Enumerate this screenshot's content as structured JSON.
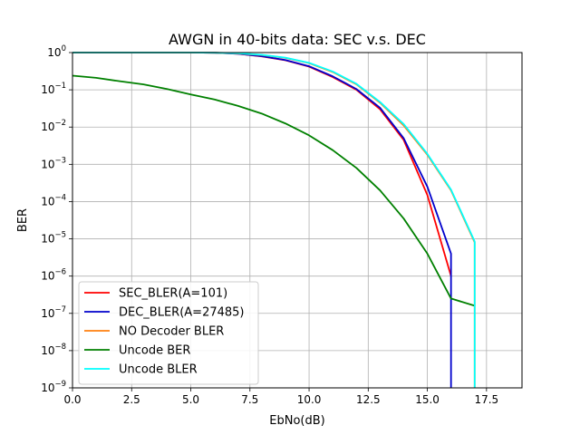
{
  "chart_data": {
    "type": "line",
    "title": "AWGN in 40-bits data: SEC v.s. DEC",
    "xlabel": "EbNo(dB)",
    "ylabel": "BER",
    "xlim": [
      0,
      19
    ],
    "ylim": [
      1e-09,
      1
    ],
    "yscale": "log",
    "grid": true,
    "legend_position": "lower-left",
    "x_ticks": [
      0,
      2.5,
      5,
      7.5,
      10,
      12.5,
      15,
      17.5
    ],
    "x_tick_labels": [
      "0.0",
      "2.5",
      "5.0",
      "7.5",
      "10.0",
      "12.5",
      "15.0",
      "17.5"
    ],
    "y_ticks": [
      {
        "value": 1.0,
        "base": "10",
        "exp": "0"
      },
      {
        "value": 0.1,
        "base": "10",
        "exp": "−1"
      },
      {
        "value": 0.01,
        "base": "10",
        "exp": "−2"
      },
      {
        "value": 0.001,
        "base": "10",
        "exp": "−3"
      },
      {
        "value": 0.0001,
        "base": "10",
        "exp": "−4"
      },
      {
        "value": 1e-05,
        "base": "10",
        "exp": "−5"
      },
      {
        "value": 1e-06,
        "base": "10",
        "exp": "−6"
      },
      {
        "value": 1e-07,
        "base": "10",
        "exp": "−7"
      },
      {
        "value": 1e-08,
        "base": "10",
        "exp": "−8"
      },
      {
        "value": 1e-09,
        "base": "10",
        "exp": "−9"
      }
    ],
    "series": [
      {
        "name": "SEC_BLER(A=101)",
        "color": "#ff0000",
        "x": [
          0,
          1,
          2,
          3,
          4,
          5,
          6,
          7,
          8,
          9,
          10,
          11,
          12,
          13,
          14,
          15,
          16
        ],
        "y": [
          1,
          1,
          1,
          1,
          1,
          1,
          0.99,
          0.93,
          0.79,
          0.62,
          0.42,
          0.22,
          0.1,
          0.03,
          0.0045,
          0.00015,
          1e-06
        ]
      },
      {
        "name": "DEC_BLER(A=27485)",
        "color": "#0000cc",
        "x": [
          0,
          1,
          2,
          3,
          4,
          5,
          6,
          7,
          8,
          9,
          10,
          11,
          12,
          13,
          14,
          15,
          16,
          16
        ],
        "y": [
          1,
          1,
          1,
          1,
          1,
          1,
          0.99,
          0.93,
          0.8,
          0.63,
          0.43,
          0.23,
          0.105,
          0.033,
          0.005,
          0.00025,
          4e-06,
          1e-09
        ]
      },
      {
        "name": "NO Decoder BLER",
        "color": "#ff7f0e",
        "x": [
          0,
          1,
          2,
          3,
          4,
          5,
          6,
          7,
          8,
          9,
          10,
          11,
          12,
          13,
          14,
          15,
          16,
          17,
          17
        ],
        "y": [
          1,
          1,
          1,
          1,
          1,
          1,
          0.99,
          0.95,
          0.86,
          0.72,
          0.52,
          0.3,
          0.14,
          0.045,
          0.011,
          0.0018,
          0.0002,
          8e-06,
          1e-09
        ]
      },
      {
        "name": "Uncode BER",
        "color": "#008000",
        "x": [
          0,
          1,
          2,
          3,
          4,
          5,
          6,
          7,
          8,
          9,
          10,
          11,
          12,
          13,
          14,
          15,
          16,
          17
        ],
        "y": [
          0.24,
          0.21,
          0.17,
          0.14,
          0.105,
          0.075,
          0.055,
          0.037,
          0.023,
          0.0125,
          0.006,
          0.0024,
          0.0008,
          0.0002,
          3.5e-05,
          4e-06,
          2.5e-07,
          1.6e-07
        ]
      },
      {
        "name": "Uncode BLER",
        "color": "#00ffff",
        "x": [
          0,
          1,
          2,
          3,
          4,
          5,
          6,
          7,
          8,
          9,
          10,
          11,
          12,
          13,
          14,
          15,
          16,
          17,
          17
        ],
        "y": [
          1,
          1,
          1,
          1,
          1,
          1,
          0.99,
          0.96,
          0.87,
          0.73,
          0.53,
          0.31,
          0.145,
          0.047,
          0.012,
          0.0019,
          0.00021,
          8.5e-06,
          1e-09
        ]
      }
    ]
  }
}
